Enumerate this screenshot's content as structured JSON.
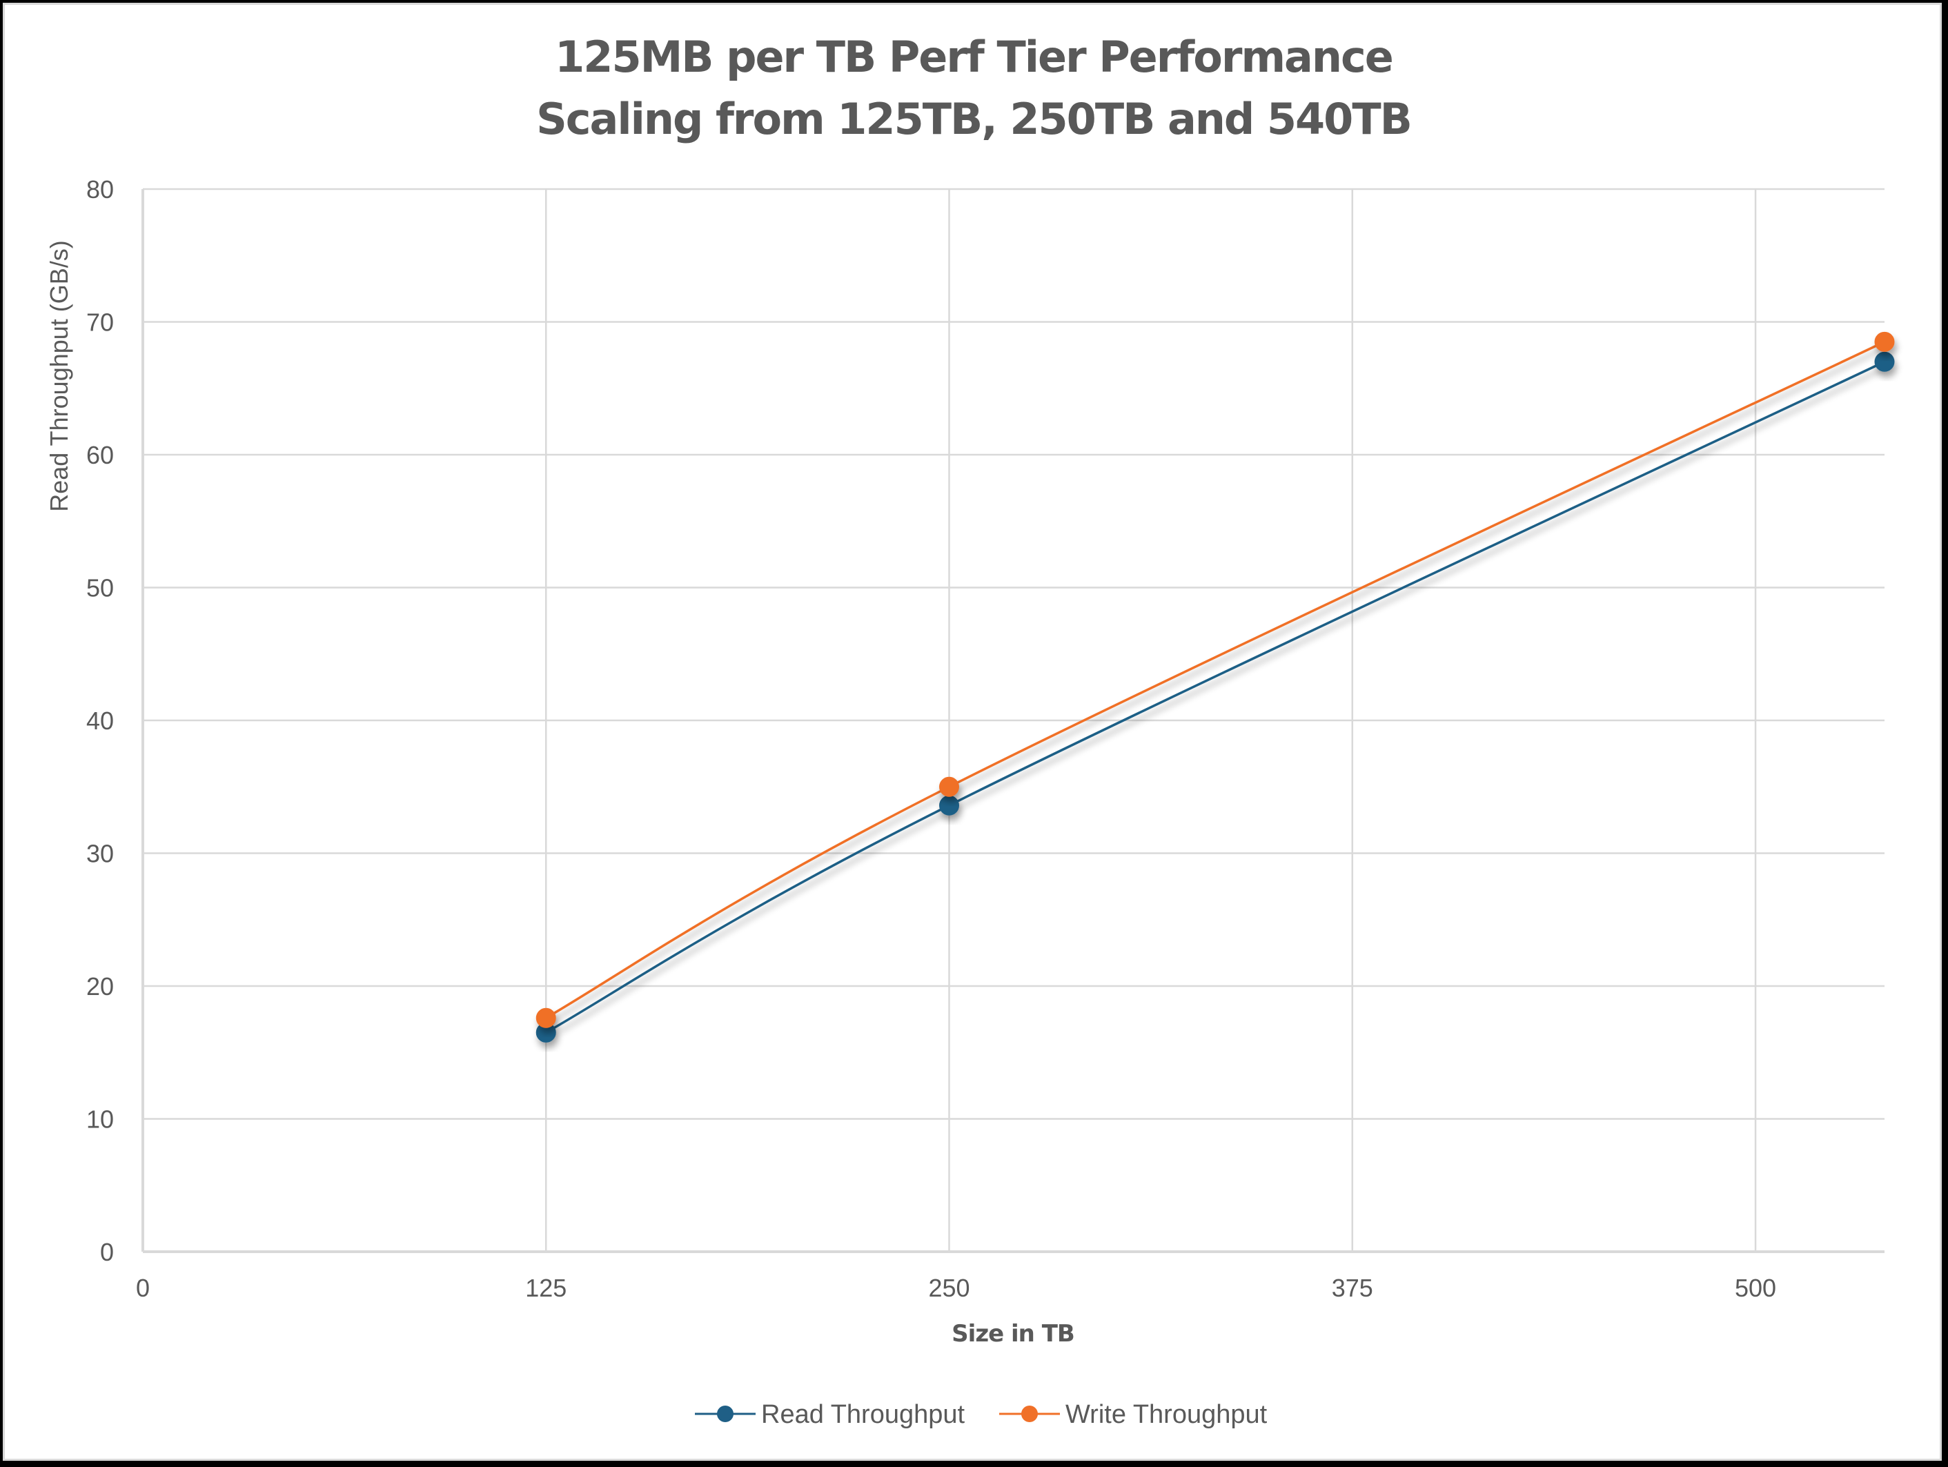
{
  "chart": {
    "title_line1": "125MB per TB Perf Tier Performance",
    "title_line2": "Scaling from 125TB, 250TB and 540TB",
    "y_axis_title": "Read Throughput (GB/s)",
    "x_axis_title": "Size in TB",
    "y_ticks": [
      "0",
      "10",
      "20",
      "30",
      "40",
      "50",
      "60",
      "70",
      "80"
    ],
    "x_ticks": [
      "0",
      "125",
      "250",
      "375",
      "500"
    ],
    "legend": [
      {
        "label": "Read Throughput",
        "color": "#1f5f86"
      },
      {
        "label": "Write Throughput",
        "color": "#f07028"
      }
    ]
  },
  "chart_data": {
    "type": "scatter",
    "title": "125MB per TB Perf Tier Performance\nScaling from 125TB, 250TB and 540TB",
    "xlabel": "Size in TB",
    "ylabel": "Read Throughput (GB/s)",
    "x": [
      125,
      250,
      540
    ],
    "series": [
      {
        "name": "Read Throughput",
        "values": [
          16.5,
          33.6,
          67.0
        ],
        "color": "#1f5f86"
      },
      {
        "name": "Write Throughput",
        "values": [
          17.6,
          35.0,
          68.5
        ],
        "color": "#f07028"
      }
    ],
    "xlim": [
      0,
      540
    ],
    "ylim": [
      0,
      80
    ],
    "x_ticks": [
      0,
      125,
      250,
      375,
      500
    ],
    "y_ticks": [
      0,
      10,
      20,
      30,
      40,
      50,
      60,
      70,
      80
    ],
    "grid": true,
    "lines": "smoothed with markers",
    "legend_position": "bottom"
  }
}
